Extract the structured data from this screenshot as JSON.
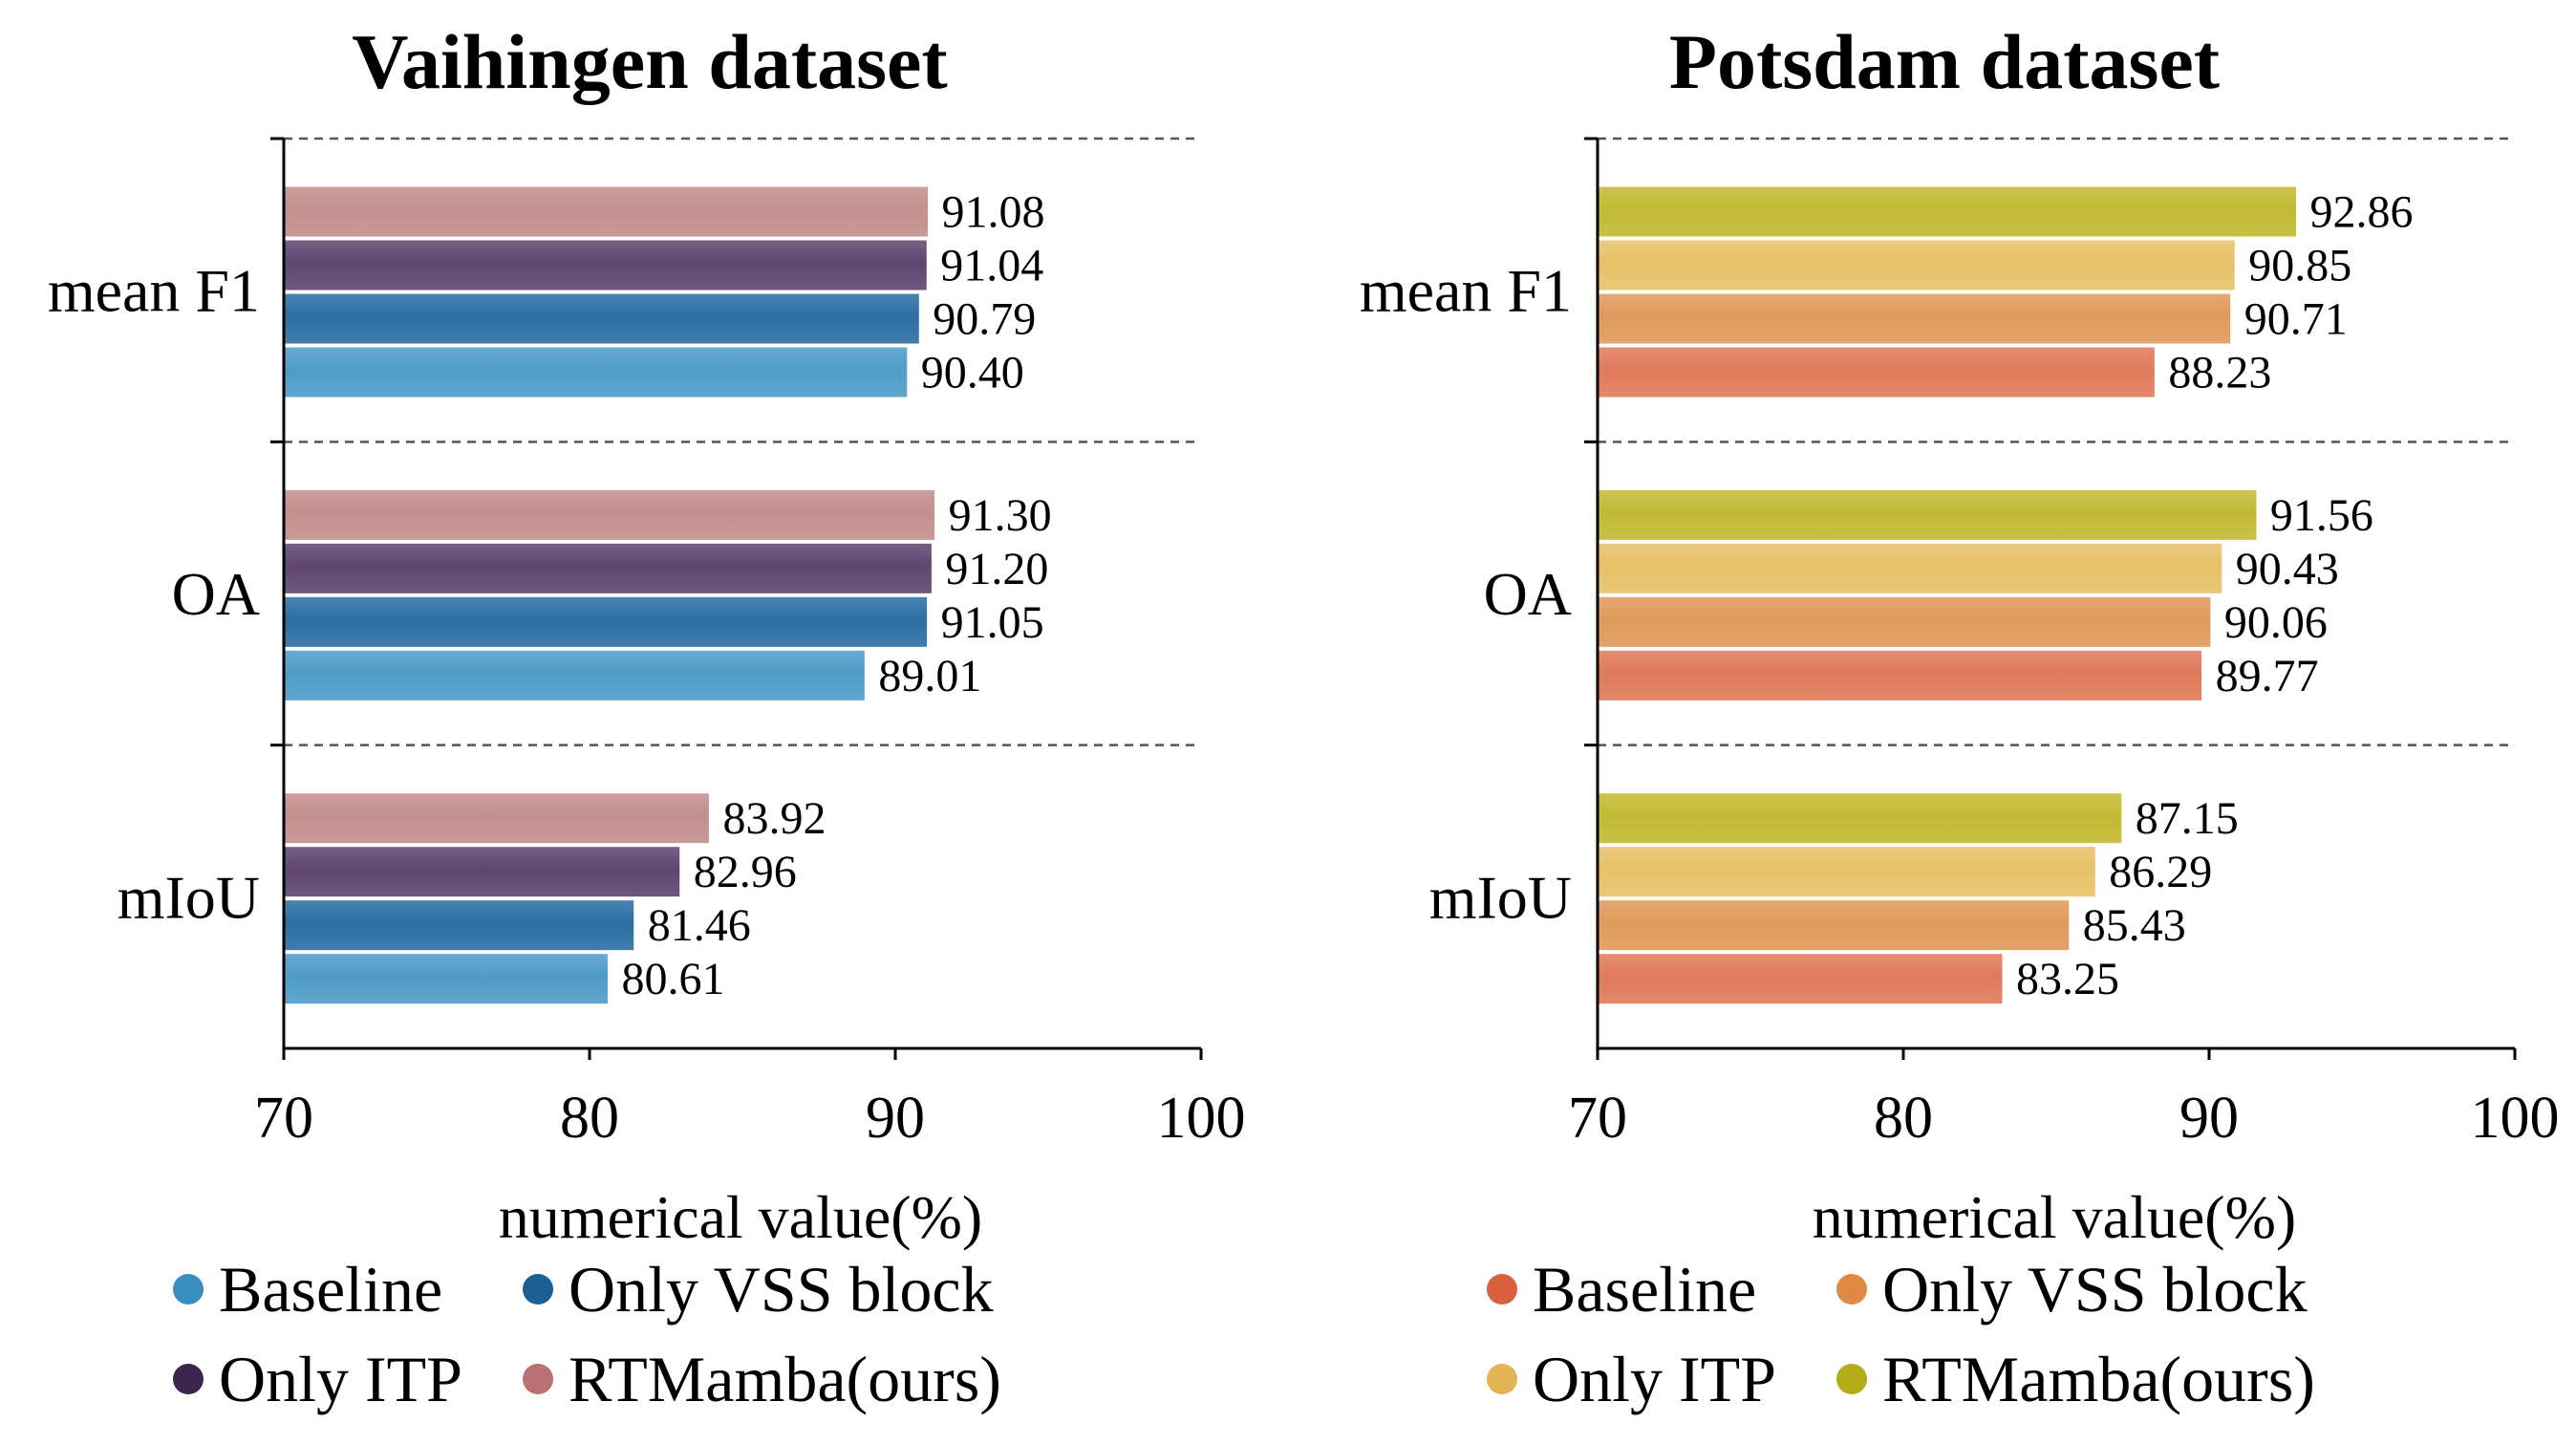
{
  "chart_data": [
    {
      "type": "bar",
      "orientation": "horizontal",
      "title": "Vaihingen dataset",
      "xlabel": "numerical value(%)",
      "ylabel": "",
      "xlim": [
        70,
        100
      ],
      "xticks": [
        70,
        80,
        90,
        100
      ],
      "categories": [
        "mean F1",
        "OA",
        "mIoU"
      ],
      "series": [
        {
          "name": "Baseline",
          "color": "#4f9cc9",
          "values": [
            90.4,
            89.01,
            80.61
          ]
        },
        {
          "name": "Only VSS block",
          "color": "#2c6ea3",
          "values": [
            90.79,
            91.05,
            81.46
          ]
        },
        {
          "name": "Only ITP",
          "color": "#5e4670",
          "values": [
            91.04,
            91.2,
            82.96
          ]
        },
        {
          "name": "RTMamba(ours)",
          "color": "#c38f8c",
          "values": [
            91.08,
            91.3,
            83.92
          ]
        }
      ],
      "legend_colors": [
        "#3a8ebf",
        "#1d5f92",
        "#3d2550",
        "#b77271"
      ]
    },
    {
      "type": "bar",
      "orientation": "horizontal",
      "title": "Potsdam dataset",
      "xlabel": "numerical value(%)",
      "ylabel": "",
      "xlim": [
        70,
        100
      ],
      "xticks": [
        70,
        80,
        90,
        100
      ],
      "categories": [
        "mean F1",
        "OA",
        "mIoU"
      ],
      "series": [
        {
          "name": "Baseline",
          "color": "#e07a5a",
          "values": [
            88.23,
            89.77,
            83.25
          ]
        },
        {
          "name": "Only VSS block",
          "color": "#e09a5a",
          "values": [
            90.71,
            90.06,
            85.43
          ]
        },
        {
          "name": "Only ITP",
          "color": "#e8c168",
          "values": [
            90.85,
            90.43,
            86.29
          ]
        },
        {
          "name": "RTMamba(ours)",
          "color": "#c2ba32",
          "values": [
            92.86,
            91.56,
            87.15
          ]
        }
      ],
      "legend_colors": [
        "#d9603e",
        "#de8a45",
        "#e2b454",
        "#b3ac16"
      ]
    }
  ]
}
